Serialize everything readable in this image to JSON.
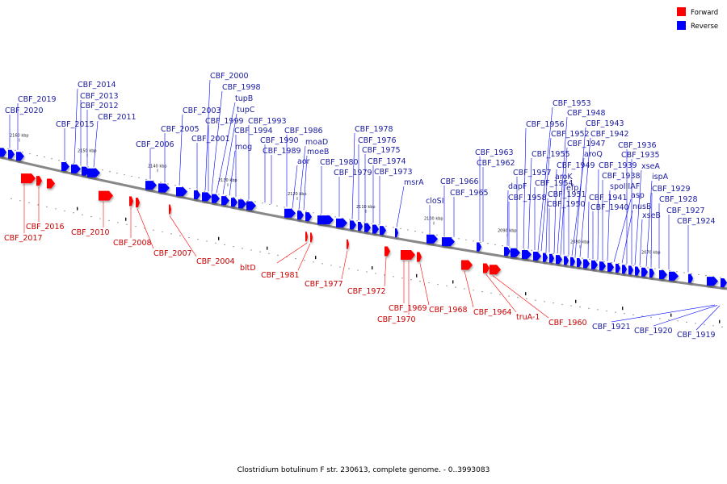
{
  "title": "Clostridium botulinum F str. 230613, complete genome. - 0..3993083",
  "colors": {
    "forward": "#ff0000",
    "reverse": "#0000ff",
    "forward_label": "#cc0000",
    "reverse_label": "#1a1aa0",
    "backbone": "#666666"
  },
  "legend": [
    {
      "label": "Forward",
      "color": "#ff0000"
    },
    {
      "label": "Reverse",
      "color": "#0000ff"
    }
  ],
  "ticks": [
    "2160 kbp",
    "2150 kbp",
    "2140 kbp",
    "2130 kbp",
    "2120 kbp",
    "2110 kbp",
    "2100 kbp",
    "2090 kbp",
    "2080 kbp",
    "2070 kbp"
  ],
  "reverse_genes": [
    "CBF_2020",
    "CBF_2019",
    "CBF_2015",
    "CBF_2014",
    "CBF_2013",
    "CBF_2012",
    "CBF_2011",
    "CBF_2006",
    "CBF_2005",
    "CBF_2003",
    "CBF_2001",
    "CBF_2000",
    "CBF_1999",
    "CBF_1998",
    "tupB",
    "tupC",
    "mog",
    "CBF_1994",
    "CBF_1993",
    "CBF_1990",
    "CBF_1989",
    "CBF_1986",
    "moaD",
    "moeB",
    "aor",
    "CBF_1980",
    "CBF_1979",
    "CBF_1978",
    "CBF_1976",
    "CBF_1975",
    "CBF_1974",
    "CBF_1973",
    "msrA",
    "cloSI",
    "CBF_1966",
    "CBF_1965",
    "CBF_1963",
    "CBF_1962",
    "CBF_1958",
    "dapF",
    "CBF_1957",
    "CBF_1956",
    "CBF_1955",
    "CBF_1954",
    "CBF_1953",
    "CBF_1952",
    "CBF_1951",
    "CBF_1950",
    "CBF_1949",
    "CBF_1948",
    "CBF_1947",
    "aroK",
    "efp",
    "aroQ",
    "CBF_1943",
    "CBF_1942",
    "CBF_1941",
    "CBF_1940",
    "CBF_1939",
    "spoIIIAF",
    "CBF_1938",
    "asp",
    "nusB",
    "CBF_1936",
    "CBF_1935",
    "xseA",
    "xseB",
    "ispA",
    "CBF_1929",
    "CBF_1928",
    "CBF_1927",
    "CBF_1924",
    "CBF_1921",
    "CBF_1920",
    "CBF_1919"
  ],
  "forward_genes": [
    "CBF_2017",
    "CBF_2016",
    "CBF_2010",
    "CBF_2008",
    "CBF_2007",
    "CBF_2004",
    "bltD",
    "CBF_1981",
    "CBF_1977",
    "CBF_1972",
    "CBF_1970",
    "CBF_1969",
    "CBF_1968",
    "CBF_1964",
    "truA-1",
    "CBF_1960"
  ]
}
